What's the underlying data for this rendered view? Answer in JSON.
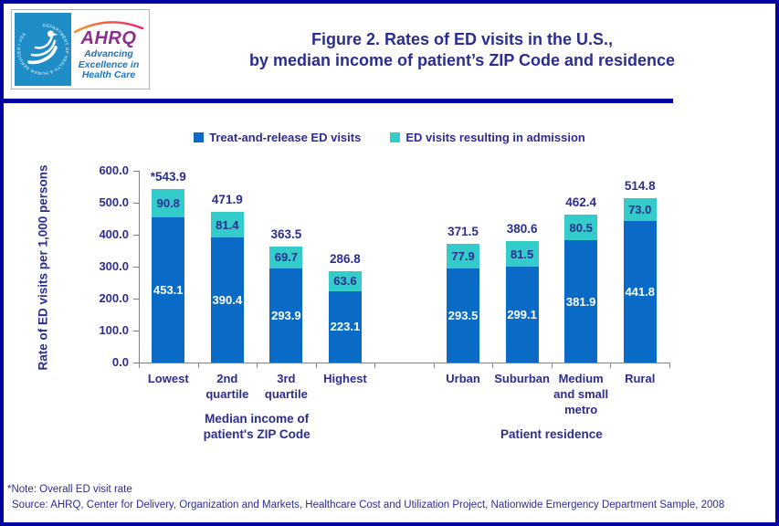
{
  "header": {
    "hhs_logo": {
      "seal_text": "DEPARTMENT OF HEALTH & HUMAN SERVICES • USA"
    },
    "ahrq_logo": {
      "name": "AHRQ",
      "tagline_lines": [
        "Advancing",
        "Excellence in",
        "Health Care"
      ]
    },
    "title_lines": [
      "Figure 2. Rates of ED visits in the U.S.,",
      "by median income of patient’s ZIP Code and residence"
    ]
  },
  "legend": {
    "items": [
      {
        "label": "Treat-and-release ED visits",
        "color": "#0A6BC6"
      },
      {
        "label": "ED visits resulting in admission",
        "color": "#33CCCB"
      }
    ]
  },
  "chart_data": {
    "type": "bar",
    "stacked": true,
    "title": "Figure 2. Rates of ED visits in the U.S., by median income of patient’s ZIP Code and residence",
    "ylabel": "Rate of ED visits per 1,000 persons",
    "ylim": [
      0,
      600
    ],
    "ytick_step": 100,
    "ytick_labels": [
      "0.0",
      "100.0",
      "200.0",
      "300.0",
      "400.0",
      "500.0",
      "600.0"
    ],
    "grid": false,
    "legend_position": "top",
    "slot_count": 9,
    "categories": [
      {
        "label": "Lowest",
        "lines": [
          "Lowest"
        ],
        "slot": 0,
        "group": 0
      },
      {
        "label": "2nd quartile",
        "lines": [
          "2nd",
          "quartile"
        ],
        "slot": 1,
        "group": 0
      },
      {
        "label": "3rd quartile",
        "lines": [
          "3rd",
          "quartile"
        ],
        "slot": 2,
        "group": 0
      },
      {
        "label": "Highest",
        "lines": [
          "Highest"
        ],
        "slot": 3,
        "group": 0
      },
      {
        "label": "Urban",
        "lines": [
          "Urban"
        ],
        "slot": 5,
        "group": 1
      },
      {
        "label": "Suburban",
        "lines": [
          "Suburban"
        ],
        "slot": 6,
        "group": 1
      },
      {
        "label": "Medium and small metro",
        "lines": [
          "Medium",
          "and small",
          "metro"
        ],
        "slot": 7,
        "group": 1
      },
      {
        "label": "Rural",
        "lines": [
          "Rural"
        ],
        "slot": 8,
        "group": 1
      }
    ],
    "groups": [
      {
        "label": "Median income of patient's ZIP Code",
        "label_lines": [
          "Median income of",
          "patient's ZIP Code"
        ]
      },
      {
        "label": "Patient residence",
        "label_lines": [
          "Patient residence"
        ]
      }
    ],
    "series": [
      {
        "name": "Treat-and-release ED visits",
        "color": "#0A6BC6",
        "label_color": "#FFFFFF",
        "values": [
          453.1,
          390.4,
          293.9,
          223.1,
          293.5,
          299.1,
          381.9,
          441.8
        ]
      },
      {
        "name": "ED visits resulting in admission",
        "color": "#33CCCB",
        "label_color": "#2B2D90",
        "values": [
          90.8,
          81.4,
          69.7,
          63.6,
          77.9,
          81.5,
          80.5,
          73.0
        ]
      }
    ],
    "total_labels": [
      "*543.9",
      "471.9",
      "363.5",
      "286.8",
      "371.5",
      "380.6",
      "462.4",
      "514.8"
    ]
  },
  "footnotes": [
    "*Note: Overall ED visit rate",
    "Source: AHRQ, Center for Delivery, Organization and Markets, Healthcare Cost and Utilization Project, Nationwide Emergency Department Sample, 2008"
  ],
  "colors": {
    "navy_text": "#2B2D90",
    "frame_border": "#0000A0",
    "axis_gray": "#808080",
    "bar_blue": "#0A6BC6",
    "bar_teal": "#33CCCB",
    "hhs_blue": "#1F8DC6",
    "ahrq_purple": "#8B2E8E",
    "tagline_blue": "#1B75BC"
  }
}
